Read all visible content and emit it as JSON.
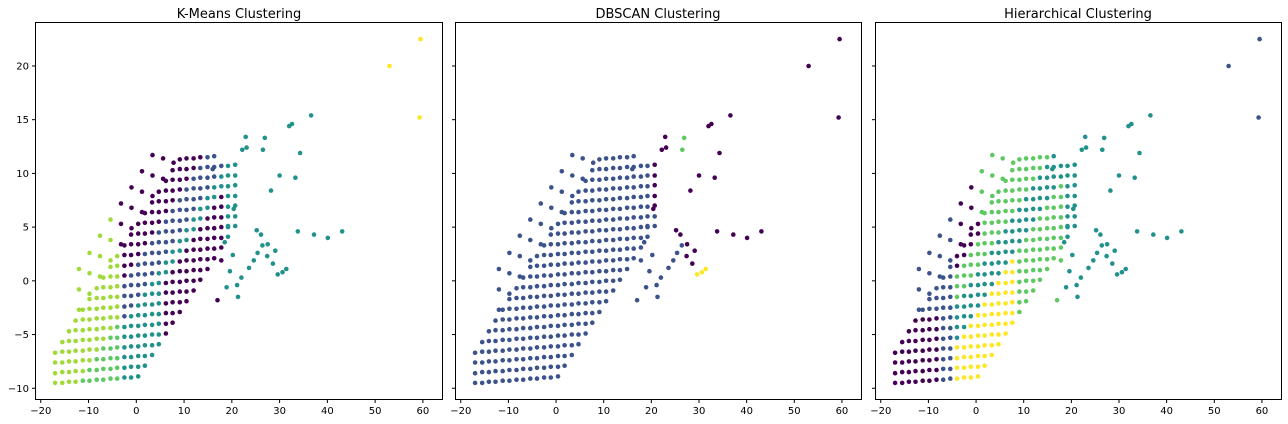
{
  "chart_data": [
    {
      "type": "scatter",
      "title": "K-Means Clustering",
      "xlabel": "",
      "ylabel": "",
      "xlim": [
        -21,
        64
      ],
      "ylim": [
        -11,
        24
      ],
      "xticks": [
        "−20",
        "−10",
        "0",
        "10",
        "20",
        "30",
        "40",
        "50",
        "60"
      ],
      "yticks": [
        "−10",
        "−5",
        "0",
        "5",
        "10",
        "15",
        "20"
      ],
      "show_yticklabels": true,
      "colormap": "viridis",
      "rule": "kmeans"
    },
    {
      "type": "scatter",
      "title": "DBSCAN Clustering",
      "xlabel": "",
      "ylabel": "",
      "xlim": [
        -21,
        64
      ],
      "ylim": [
        -11,
        24
      ],
      "xticks": [
        "−20",
        "−10",
        "0",
        "10",
        "20",
        "30",
        "40",
        "50",
        "60"
      ],
      "yticks": [
        "−10",
        "−5",
        "0",
        "5",
        "10",
        "15",
        "20"
      ],
      "show_yticklabels": false,
      "colormap": "viridis",
      "rule": "dbscan"
    },
    {
      "type": "scatter",
      "title": "Hierarchical Clustering",
      "xlabel": "",
      "ylabel": "",
      "xlim": [
        -21,
        64
      ],
      "ylim": [
        -11,
        24
      ],
      "xticks": [
        "−20",
        "−10",
        "0",
        "10",
        "20",
        "30",
        "40",
        "50",
        "60"
      ],
      "yticks": [
        "−10",
        "−5",
        "0",
        "5",
        "10",
        "15",
        "20"
      ],
      "show_yticklabels": false,
      "colormap": "viridis",
      "rule": "hier"
    }
  ],
  "colors": {
    "purple": "#440154",
    "blue": "#3b528b",
    "teal": "#21918c",
    "green": "#5ec962",
    "lime": "#a0da39",
    "yellow": "#fde725",
    "background": "#ffffff"
  }
}
